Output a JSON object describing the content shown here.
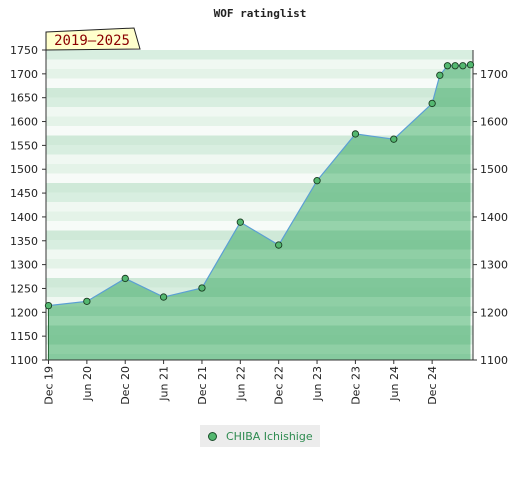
{
  "chart_data": {
    "type": "area",
    "title": "WOF ratinglist",
    "badge": "2019–2025",
    "ylim": [
      1100,
      1750
    ],
    "yticks": [
      1100,
      1150,
      1200,
      1250,
      1300,
      1350,
      1400,
      1450,
      1500,
      1550,
      1600,
      1650,
      1700,
      1750
    ],
    "yticks_right": [
      1100,
      1200,
      1300,
      1400,
      1500,
      1600,
      1700
    ],
    "xlim": [
      0,
      11
    ],
    "xticks": [
      {
        "pos": 0,
        "label": "Dec 19"
      },
      {
        "pos": 1,
        "label": "Jun 20"
      },
      {
        "pos": 2,
        "label": "Dec 20"
      },
      {
        "pos": 3,
        "label": "Jun 21"
      },
      {
        "pos": 4,
        "label": "Dec 21"
      },
      {
        "pos": 5,
        "label": "Jun 22"
      },
      {
        "pos": 6,
        "label": "Dec 22"
      },
      {
        "pos": 7,
        "label": "Jun 23"
      },
      {
        "pos": 8,
        "label": "Dec 23"
      },
      {
        "pos": 9,
        "label": "Jun 24"
      },
      {
        "pos": 10,
        "label": "Dec 24"
      }
    ],
    "grid": "horizontal bands",
    "legend_position": "bottom-center",
    "series": [
      {
        "name": "CHIBA Ichishige",
        "color": "#54b870",
        "line_color": "#5b9fd4",
        "points": [
          {
            "x": 0,
            "y": 1214
          },
          {
            "x": 1,
            "y": 1223
          },
          {
            "x": 2,
            "y": 1271
          },
          {
            "x": 3,
            "y": 1232
          },
          {
            "x": 4,
            "y": 1251
          },
          {
            "x": 5,
            "y": 1389
          },
          {
            "x": 6,
            "y": 1341
          },
          {
            "x": 7,
            "y": 1476
          },
          {
            "x": 8,
            "y": 1574
          },
          {
            "x": 9,
            "y": 1563
          },
          {
            "x": 10,
            "y": 1638
          },
          {
            "x": 10.2,
            "y": 1697
          },
          {
            "x": 10.4,
            "y": 1717
          },
          {
            "x": 10.6,
            "y": 1717
          },
          {
            "x": 10.8,
            "y": 1717
          },
          {
            "x": 11,
            "y": 1719
          }
        ]
      }
    ]
  }
}
